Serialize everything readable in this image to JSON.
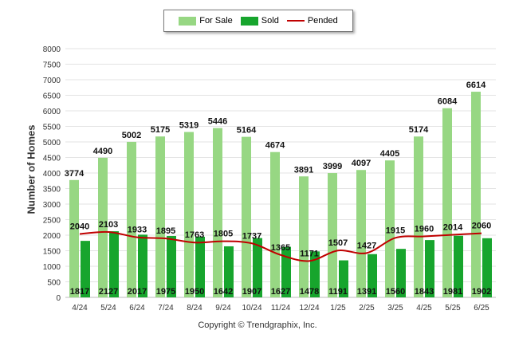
{
  "chart_data": {
    "type": "bar",
    "categories": [
      "4/24",
      "5/24",
      "6/24",
      "7/24",
      "8/24",
      "9/24",
      "10/24",
      "11/24",
      "12/24",
      "1/25",
      "2/25",
      "3/25",
      "4/25",
      "5/25",
      "6/25"
    ],
    "series": [
      {
        "name": "For Sale",
        "type": "bar",
        "color": "#97d783",
        "values": [
          3774,
          4490,
          5002,
          5175,
          5319,
          5446,
          5164,
          4674,
          3891,
          3999,
          4097,
          4405,
          5174,
          6084,
          6614
        ]
      },
      {
        "name": "Sold",
        "type": "bar",
        "color": "#17a52d",
        "values": [
          1817,
          2127,
          2017,
          1975,
          1950,
          1642,
          1907,
          1627,
          1478,
          1191,
          1391,
          1560,
          1843,
          1981,
          1902
        ]
      },
      {
        "name": "Pended",
        "type": "line",
        "color": "#c00000",
        "values": [
          2040,
          2103,
          1933,
          1895,
          1763,
          1805,
          1737,
          1365,
          1171,
          1507,
          1427,
          1915,
          1960,
          2014,
          2060
        ]
      }
    ],
    "ylabel": "Number of Homes",
    "ylim": [
      0,
      8000
    ],
    "yticks": [
      0,
      500,
      1000,
      1500,
      2000,
      2500,
      3000,
      3500,
      4000,
      4500,
      5000,
      5500,
      6000,
      6500,
      7000,
      7500,
      8000
    ],
    "grid": true,
    "legend_position": "top-center"
  },
  "footer": "Copyright © Trendgraphix, Inc."
}
